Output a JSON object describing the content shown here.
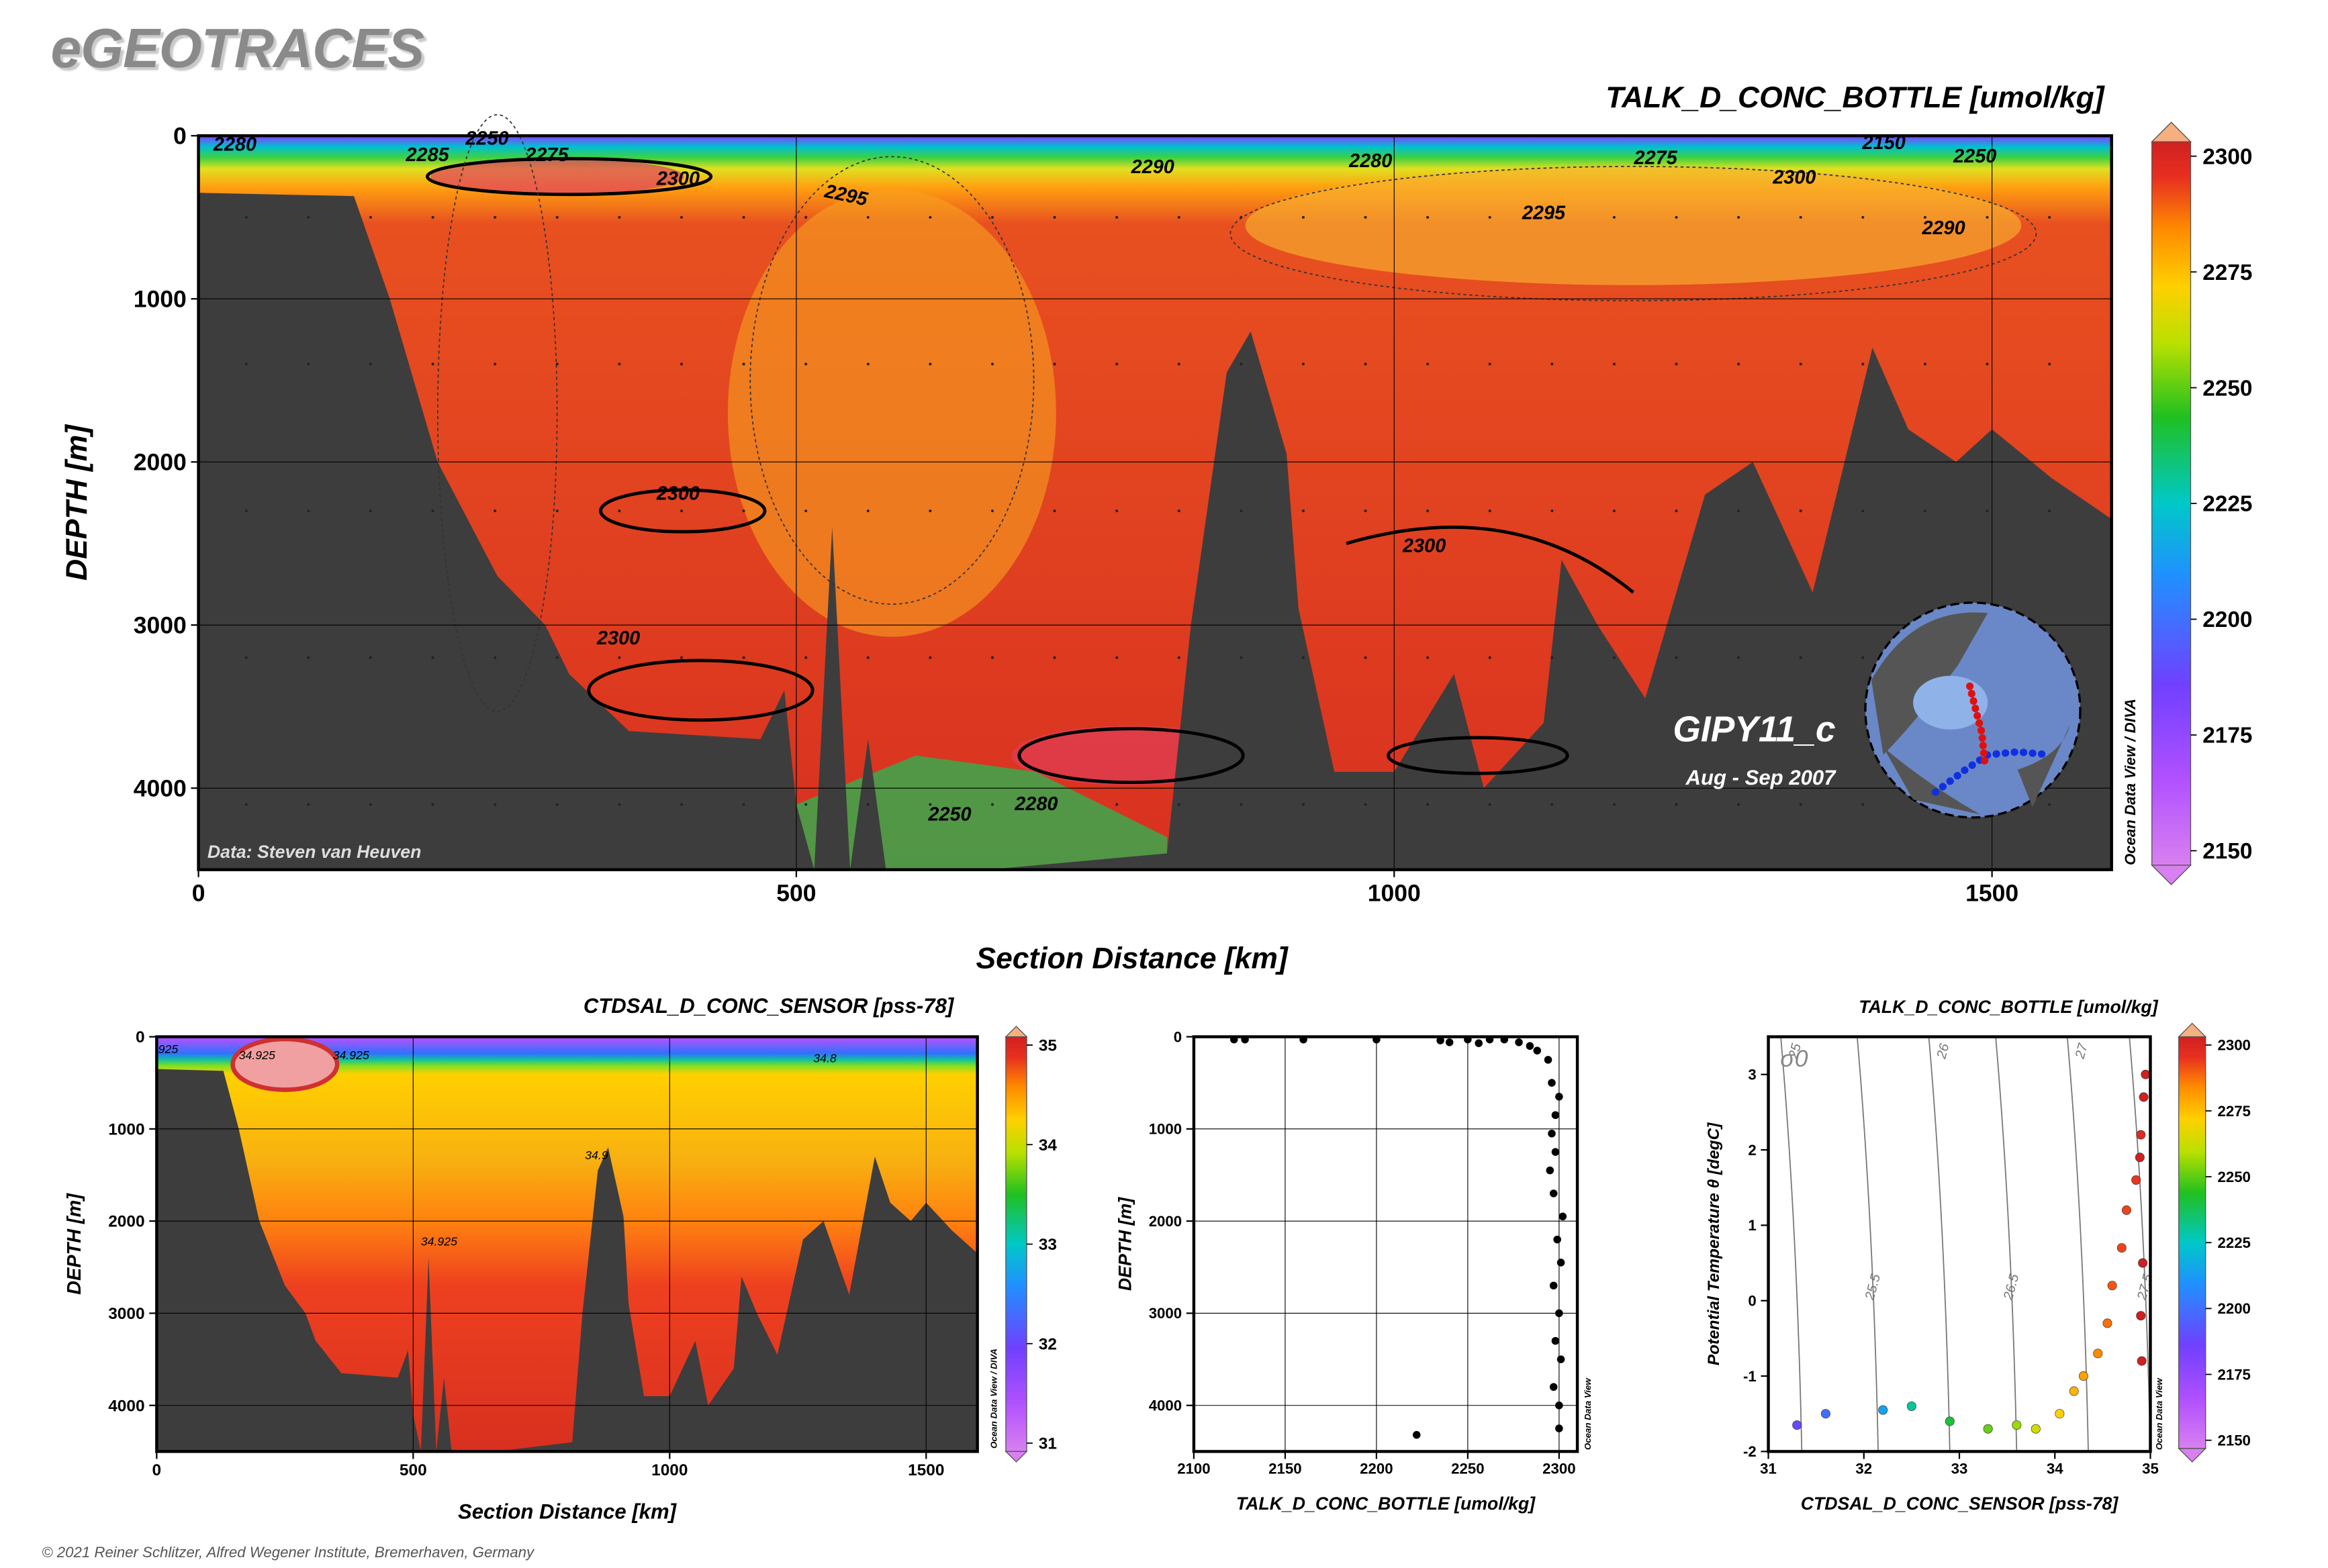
{
  "header": {
    "brand": "eGEOTRACES",
    "copyright": "© 2021 Reiner Schlitzer, Alfred Wegener Institute, Bremerhaven, Germany"
  },
  "colors": {
    "bathymetry": "#3d3d3d",
    "grid": "#000000"
  },
  "chart_data": [
    {
      "type": "heatmap",
      "title": "TALK_D_CONC_BOTTLE [umol/kg]",
      "xlabel": "Section Distance [km]",
      "ylabel": "DEPTH [m]",
      "xlim": [
        0,
        1600
      ],
      "ylim": [
        4500,
        0
      ],
      "x_ticks": [
        0,
        500,
        1000,
        1500
      ],
      "y_ticks": [
        0,
        1000,
        2000,
        3000,
        4000
      ],
      "colorbar": {
        "min": 2150,
        "max": 2300,
        "ticks": [
          2150,
          2175,
          2200,
          2225,
          2250,
          2275,
          2300
        ]
      },
      "contour_labels": [
        "2280",
        "2250",
        "2285",
        "2275",
        "2300",
        "2295",
        "2290",
        "2280",
        "2275",
        "2150",
        "2250",
        "2300",
        "2295",
        "2290",
        "2300",
        "2300",
        "2300",
        "2250",
        "2280"
      ],
      "annotations": {
        "source": "Data: Steven van Heuven",
        "cruise": "GIPY11_c",
        "period": "Aug - Sep 2007",
        "watermark": "Ocean Data View / DIVA"
      },
      "bathymetry_depth_km": [
        [
          0,
          350
        ],
        [
          130,
          370
        ],
        [
          160,
          1000
        ],
        [
          200,
          2000
        ],
        [
          250,
          2700
        ],
        [
          290,
          3000
        ],
        [
          310,
          3300
        ],
        [
          360,
          3650
        ],
        [
          470,
          3700
        ],
        [
          490,
          3400
        ],
        [
          500,
          4100
        ],
        [
          515,
          4500
        ],
        [
          530,
          2400
        ],
        [
          545,
          4500
        ],
        [
          560,
          3700
        ],
        [
          575,
          4500
        ],
        [
          600,
          4500
        ],
        [
          660,
          4500
        ],
        [
          810,
          4400
        ],
        [
          830,
          3000
        ],
        [
          860,
          1450
        ],
        [
          880,
          1200
        ],
        [
          910,
          1950
        ],
        [
          920,
          2900
        ],
        [
          950,
          3900
        ],
        [
          1000,
          3900
        ],
        [
          1050,
          3300
        ],
        [
          1075,
          4000
        ],
        [
          1100,
          3800
        ],
        [
          1125,
          3600
        ],
        [
          1140,
          2600
        ],
        [
          1170,
          3000
        ],
        [
          1210,
          3450
        ],
        [
          1260,
          2200
        ],
        [
          1300,
          2000
        ],
        [
          1350,
          2800
        ],
        [
          1400,
          1300
        ],
        [
          1430,
          1800
        ],
        [
          1470,
          2000
        ],
        [
          1500,
          1800
        ],
        [
          1550,
          2100
        ],
        [
          1600,
          2350
        ]
      ]
    },
    {
      "type": "heatmap",
      "title": "CTDSAL_D_CONC_SENSOR [pss-78]",
      "xlabel": "Section Distance [km]",
      "ylabel": "DEPTH [m]",
      "xlim": [
        0,
        1600
      ],
      "ylim": [
        4500,
        0
      ],
      "x_ticks": [
        0,
        500,
        1000,
        1500
      ],
      "y_ticks": [
        0,
        1000,
        2000,
        3000,
        4000
      ],
      "colorbar": {
        "min": 31,
        "max": 35,
        "ticks": [
          31,
          32,
          33,
          34,
          35
        ]
      },
      "contour_labels": [
        "34.925",
        "34.925",
        "34.8",
        "34.9",
        "34.925",
        "925"
      ],
      "annotations": {
        "watermark": "Ocean Data View / DIVA"
      }
    },
    {
      "type": "scatter",
      "xlabel": "TALK_D_CONC_BOTTLE [umol/kg]",
      "ylabel": "DEPTH [m]",
      "xlim": [
        2100,
        2310
      ],
      "ylim": [
        4500,
        0
      ],
      "x_ticks": [
        2100,
        2150,
        2200,
        2250,
        2300
      ],
      "y_ticks": [
        0,
        1000,
        2000,
        3000,
        4000
      ],
      "points": [
        [
          2122,
          30
        ],
        [
          2128,
          30
        ],
        [
          2160,
          30
        ],
        [
          2200,
          30
        ],
        [
          2235,
          40
        ],
        [
          2240,
          60
        ],
        [
          2250,
          30
        ],
        [
          2256,
          70
        ],
        [
          2262,
          30
        ],
        [
          2270,
          30
        ],
        [
          2278,
          60
        ],
        [
          2284,
          100
        ],
        [
          2288,
          150
        ],
        [
          2294,
          250
        ],
        [
          2296,
          500
        ],
        [
          2300,
          650
        ],
        [
          2298,
          850
        ],
        [
          2296,
          1050
        ],
        [
          2298,
          1250
        ],
        [
          2295,
          1450
        ],
        [
          2297,
          1700
        ],
        [
          2302,
          1950
        ],
        [
          2299,
          2200
        ],
        [
          2301,
          2450
        ],
        [
          2297,
          2700
        ],
        [
          2300,
          3000
        ],
        [
          2298,
          3300
        ],
        [
          2301,
          3500
        ],
        [
          2297,
          3800
        ],
        [
          2300,
          4000
        ],
        [
          2300,
          4250
        ],
        [
          2222,
          4320
        ]
      ],
      "annotations": {
        "watermark": "Ocean Data View"
      }
    },
    {
      "type": "scatter",
      "title": "TALK_D_CONC_BOTTLE [umol/kg]",
      "xlabel": "CTDSAL_D_CONC_SENSOR [pss-78]",
      "ylabel": "Potential Temperature θ [degC]",
      "xlim": [
        31,
        35
      ],
      "ylim": [
        -2,
        3.5
      ],
      "x_ticks": [
        31,
        32,
        33,
        34,
        35
      ],
      "y_ticks": [
        -2,
        -1,
        0,
        1,
        2,
        3
      ],
      "isopycnal_symbol": "σ0",
      "isopycnals": [
        "25",
        "25.5",
        "26",
        "26.5",
        "27",
        "27.5"
      ],
      "colorbar": {
        "min": 2150,
        "max": 2300,
        "ticks": [
          2150,
          2175,
          2200,
          2225,
          2250,
          2275,
          2300
        ]
      },
      "points": [
        [
          31.3,
          -1.65,
          2190
        ],
        [
          31.6,
          -1.5,
          2200
        ],
        [
          32.2,
          -1.45,
          2215
        ],
        [
          32.5,
          -1.4,
          2230
        ],
        [
          32.9,
          -1.6,
          2240
        ],
        [
          33.3,
          -1.7,
          2250
        ],
        [
          33.6,
          -1.65,
          2255
        ],
        [
          33.8,
          -1.7,
          2262
        ],
        [
          34.05,
          -1.5,
          2270
        ],
        [
          34.2,
          -1.2,
          2275
        ],
        [
          34.3,
          -1.0,
          2278
        ],
        [
          34.45,
          -0.7,
          2282
        ],
        [
          34.55,
          -0.3,
          2285
        ],
        [
          34.6,
          0.2,
          2288
        ],
        [
          34.7,
          0.7,
          2290
        ],
        [
          34.75,
          1.2,
          2290
        ],
        [
          34.85,
          1.6,
          2292
        ],
        [
          34.9,
          2.2,
          2295
        ],
        [
          34.93,
          2.7,
          2300
        ],
        [
          34.95,
          3.0,
          2302
        ],
        [
          34.92,
          0.5,
          2302
        ],
        [
          34.9,
          -0.2,
          2303
        ],
        [
          34.91,
          -0.8,
          2304
        ],
        [
          34.89,
          1.9,
          2301
        ]
      ],
      "annotations": {
        "watermark": "Ocean Data View"
      }
    }
  ]
}
